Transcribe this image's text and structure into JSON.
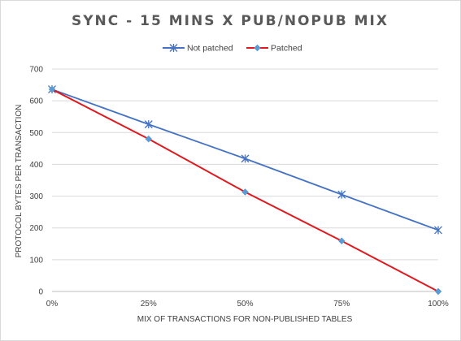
{
  "chart_data": {
    "type": "line",
    "title": "SYNC - 15 MINS X PUB/NOPUB MIX",
    "xlabel": "MIX OF TRANSACTIONS FOR NON-PUBLISHED TABLES",
    "ylabel": "PROTOCOL BYTES PER TRANSACTION",
    "categories": [
      "0%",
      "25%",
      "50%",
      "75%",
      "100%"
    ],
    "ylim": [
      0,
      700
    ],
    "yticks": [
      0,
      100,
      200,
      300,
      400,
      500,
      600,
      700
    ],
    "grid": true,
    "legend_position": "top-center",
    "series": [
      {
        "name": "Not patched",
        "values": [
          636,
          526,
          418,
          305,
          193
        ],
        "color": "#4472c4",
        "marker": "star"
      },
      {
        "name": "Patched",
        "values": [
          636,
          480,
          313,
          159,
          0
        ],
        "color": "#e0191f",
        "marker": "diamond",
        "marker_color": "#5b9bd5"
      }
    ]
  }
}
